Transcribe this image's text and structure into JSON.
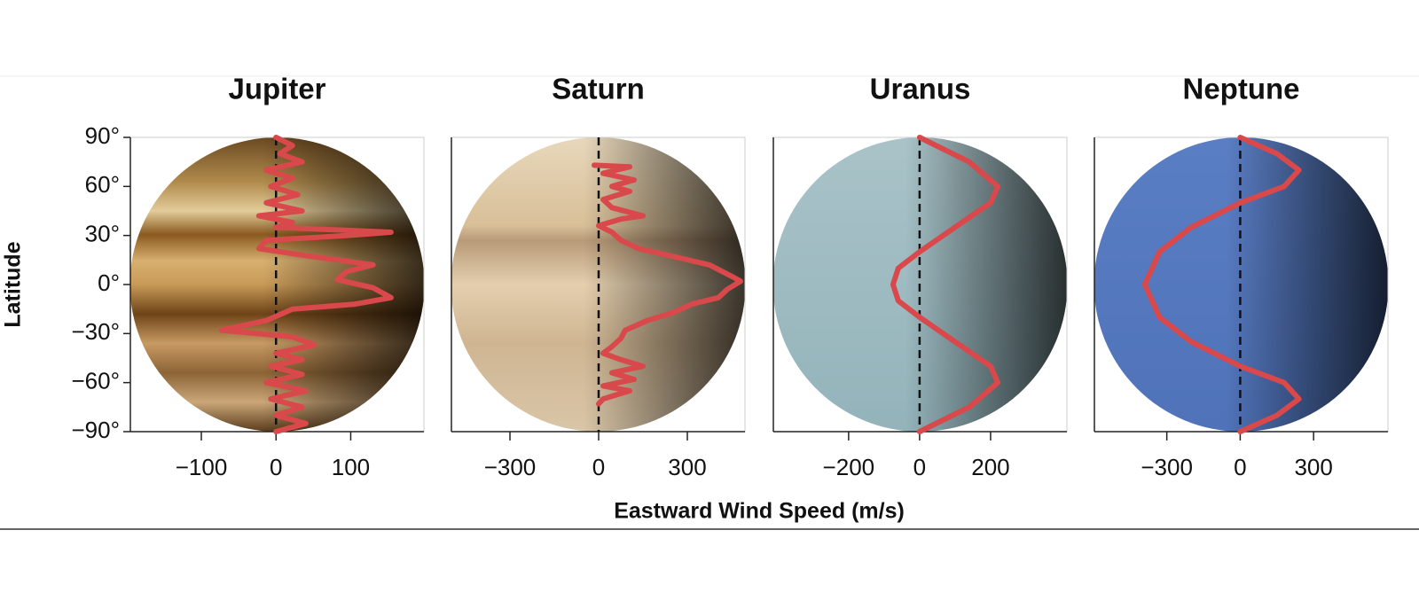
{
  "y_label": "Latitude",
  "x_label": "Eastward Wind Speed (m/s)",
  "chart_data": [
    {
      "type": "line",
      "title": "Jupiter",
      "xlim": [
        -195,
        198
      ],
      "xticks": [
        {
          "value": -100,
          "label": "−100"
        },
        0,
        100
      ],
      "ylim": [
        -90,
        90
      ],
      "yticks": [
        {
          "value": 90,
          "label": "90°"
        },
        {
          "value": 60,
          "label": "60°"
        },
        {
          "value": 30,
          "label": "30°"
        },
        {
          "value": 0,
          "label": "0°"
        },
        {
          "value": -30,
          "label": "−30°"
        },
        {
          "value": -60,
          "label": "−60°"
        },
        {
          "value": -90,
          "label": "−90°"
        }
      ],
      "series": [
        {
          "color": "#d9484a",
          "x": [
            0,
            22,
            5,
            35,
            -13,
            22,
            -7,
            29,
            -13,
            35,
            -23,
            22,
            0,
            154,
            95,
            -13,
            -23,
            35,
            130,
            95,
            82,
            130,
            154,
            106,
            22,
            -13,
            -73,
            22,
            52,
            0,
            35,
            -7,
            35,
            -13,
            40,
            -7,
            35,
            0,
            40,
            0
          ],
          "y": [
            90,
            85,
            80,
            75,
            70,
            65,
            60,
            55,
            50,
            45,
            42,
            38,
            35,
            32,
            30,
            27,
            22,
            18,
            12,
            8,
            3,
            -2,
            -8,
            -12,
            -15,
            -22,
            -28,
            -32,
            -37,
            -42,
            -46,
            -50,
            -55,
            -60,
            -65,
            -70,
            -75,
            -80,
            -85,
            -90
          ]
        }
      ]
    },
    {
      "type": "line",
      "title": "Saturn",
      "xlim": [
        -498,
        495
      ],
      "xticks": [
        {
          "value": -300,
          "label": "−300"
        },
        0,
        300
      ],
      "ylim": [
        -90,
        90
      ],
      "series": [
        {
          "color": "#d9484a",
          "x": [
            -15,
            105,
            15,
            120,
            45,
            105,
            15,
            45,
            150,
            75,
            0,
            45,
            75,
            135,
            255,
            375,
            450,
            480,
            435,
            405,
            315,
            255,
            165,
            90,
            75,
            45,
            15,
            75,
            150,
            45,
            120,
            15,
            105,
            15,
            0
          ],
          "y": [
            73,
            72,
            68,
            64,
            60,
            57,
            52,
            47,
            42,
            40,
            36,
            32,
            27,
            22,
            17,
            12,
            5,
            2,
            -3,
            -8,
            -12,
            -17,
            -22,
            -28,
            -33,
            -38,
            -42,
            -46,
            -50,
            -54,
            -58,
            -62,
            -65,
            -70,
            -73
          ]
        }
      ]
    },
    {
      "type": "line",
      "title": "Uranus",
      "xlim": [
        -412,
        415
      ],
      "xticks": [
        {
          "value": -200,
          "label": "−200"
        },
        0,
        200
      ],
      "ylim": [
        -90,
        90
      ],
      "series": [
        {
          "color": "#d9484a",
          "x": [
            0,
            140,
            220,
            200,
            100,
            0,
            -60,
            -75,
            -60,
            0,
            100,
            200,
            220,
            140,
            0
          ],
          "y": [
            90,
            75,
            60,
            50,
            35,
            20,
            10,
            0,
            -10,
            -20,
            -35,
            -50,
            -60,
            -75,
            -90
          ]
        }
      ]
    },
    {
      "type": "line",
      "title": "Neptune",
      "xlim": [
        -596,
        604
      ],
      "xticks": [
        {
          "value": -300,
          "label": "−300"
        },
        0,
        300
      ],
      "ylim": [
        -90,
        90
      ],
      "series": [
        {
          "color": "#d9484a",
          "x": [
            0,
            150,
            240,
            180,
            0,
            -200,
            -330,
            -390,
            -330,
            -200,
            0,
            180,
            240,
            150,
            0
          ],
          "y": [
            90,
            80,
            70,
            60,
            50,
            35,
            20,
            0,
            -20,
            -35,
            -50,
            -60,
            -70,
            -80,
            -90
          ]
        }
      ]
    }
  ]
}
